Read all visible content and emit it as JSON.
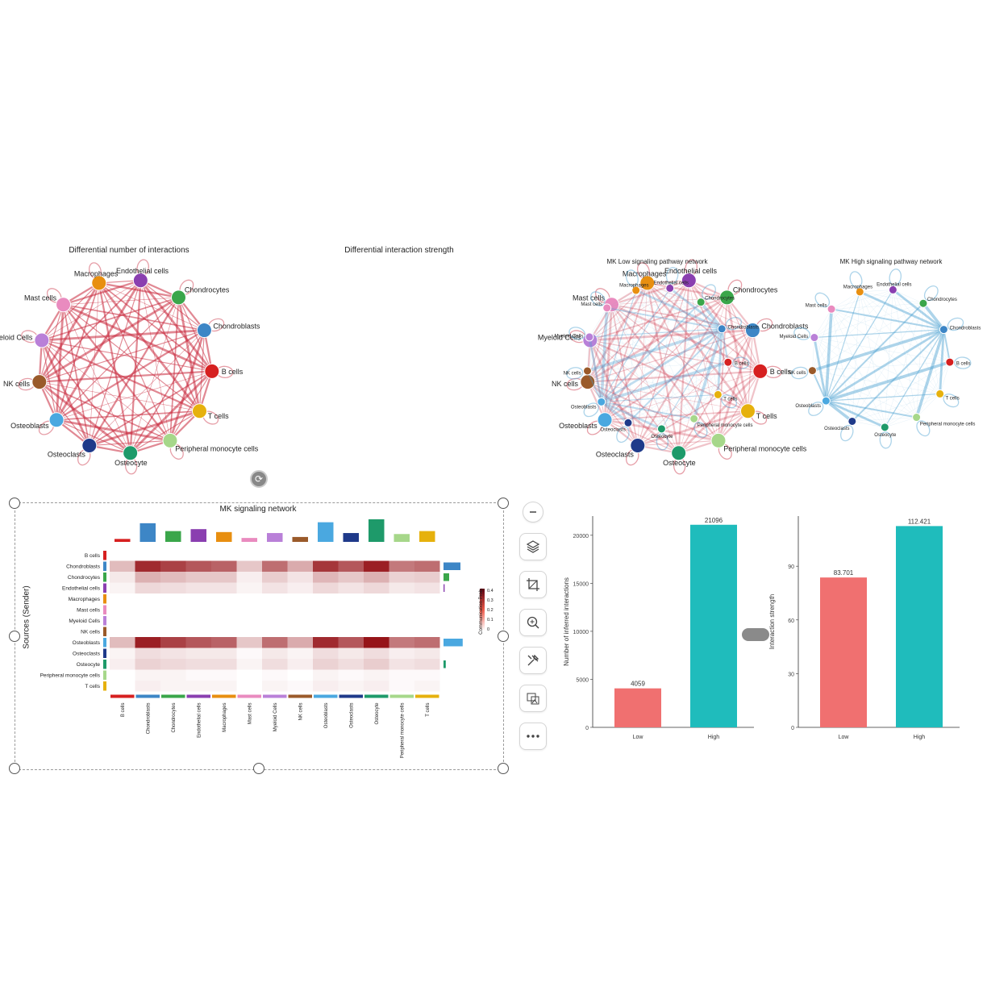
{
  "networks": {
    "cell_types": [
      "Endothelial cells",
      "Chondrocytes",
      "Chondroblasts",
      "B cells",
      "T cells",
      "Peripheral monocyte cells",
      "Osteocyte",
      "Osteoclasts",
      "Osteoblasts",
      "NK cells",
      "Myeloid Cells",
      "Mast cells",
      "Macrophages"
    ],
    "node_colors": [
      "#8a3fb0",
      "#3aa64a",
      "#3d86c6",
      "#d62020",
      "#e6b10d",
      "#a6d78a",
      "#1e9a6a",
      "#1f3a8a",
      "#4aa8e0",
      "#9a5a2a",
      "#b980d8",
      "#e98bbf",
      "#e88f10"
    ],
    "diff_number_title": "Differential number of interactions",
    "diff_strength_title": "Differential interaction strength",
    "low_title": "MK Low signaling pathway network",
    "high_title": "MK High signaling pathway network"
  },
  "heatmap": {
    "title": "MK signaling network",
    "ylabel": "Sources (Sender)",
    "legend_title": "Communication Prob.",
    "legend_ticks": [
      "0.4",
      "0.3",
      "0.2",
      "0.1",
      "0"
    ],
    "rows": [
      "B cells",
      "Chondroblasts",
      "Chondrocytes",
      "Endothelial cells",
      "Macrophages",
      "Mast cells",
      "Myeloid Cells",
      "NK cells",
      "Osteoblasts",
      "Osteoclasts",
      "Osteocyte",
      "Peripheral monocyte cells",
      "T cells"
    ],
    "cols": [
      "B cells",
      "Chondroblasts",
      "Chondrocytes",
      "Endothelial cells",
      "Macrophages",
      "Mast cells",
      "Myeloid Cells",
      "NK cells",
      "Osteoblasts",
      "Osteoclasts",
      "Osteocyte",
      "Peripheral monocyte cells",
      "T cells"
    ],
    "colors": [
      "#d62020",
      "#3d86c6",
      "#3aa64a",
      "#8a3fb0",
      "#e88f10",
      "#e98bbf",
      "#b980d8",
      "#9a5a2a",
      "#4aa8e0",
      "#1f3a8a",
      "#1e9a6a",
      "#a6d78a",
      "#e6b10d"
    ],
    "top_bar_values": [
      0.3,
      1.9,
      1.1,
      1.3,
      1.0,
      0.4,
      0.9,
      0.5,
      2.0,
      0.9,
      2.3,
      0.8,
      1.1
    ],
    "right_bar_values": [
      0,
      1.5,
      0.5,
      0.1,
      0,
      0,
      0,
      0,
      1.7,
      0,
      0.2,
      0,
      0
    ],
    "matrix": [
      [
        0,
        0,
        0,
        0,
        0,
        0,
        0,
        0,
        0,
        0,
        0,
        0,
        0
      ],
      [
        0.12,
        0.38,
        0.34,
        0.3,
        0.28,
        0.1,
        0.26,
        0.15,
        0.36,
        0.3,
        0.4,
        0.24,
        0.26
      ],
      [
        0.04,
        0.14,
        0.12,
        0.1,
        0.1,
        0.03,
        0.09,
        0.05,
        0.13,
        0.1,
        0.14,
        0.08,
        0.09
      ],
      [
        0.02,
        0.07,
        0.06,
        0.05,
        0.05,
        0.02,
        0.05,
        0.03,
        0.07,
        0.05,
        0.07,
        0.04,
        0.05
      ],
      [
        0,
        0,
        0,
        0,
        0,
        0,
        0,
        0,
        0,
        0,
        0,
        0,
        0
      ],
      [
        0,
        0,
        0,
        0,
        0,
        0,
        0,
        0,
        0,
        0,
        0,
        0,
        0
      ],
      [
        0,
        0,
        0,
        0,
        0,
        0,
        0,
        0,
        0,
        0,
        0,
        0,
        0
      ],
      [
        0,
        0,
        0,
        0,
        0,
        0,
        0,
        0,
        0,
        0,
        0,
        0,
        0
      ],
      [
        0.12,
        0.4,
        0.34,
        0.3,
        0.28,
        0.1,
        0.26,
        0.15,
        0.38,
        0.3,
        0.42,
        0.24,
        0.26
      ],
      [
        0.02,
        0.06,
        0.05,
        0.04,
        0.04,
        0.01,
        0.04,
        0.02,
        0.06,
        0.04,
        0.06,
        0.03,
        0.04
      ],
      [
        0.03,
        0.08,
        0.07,
        0.06,
        0.06,
        0.02,
        0.06,
        0.03,
        0.08,
        0.06,
        0.09,
        0.05,
        0.06
      ],
      [
        0,
        0.02,
        0.02,
        0.01,
        0.01,
        0,
        0.01,
        0,
        0.02,
        0.01,
        0.02,
        0.01,
        0.01
      ],
      [
        0,
        0.03,
        0.02,
        0.02,
        0.02,
        0,
        0.02,
        0.01,
        0.03,
        0.02,
        0.03,
        0.01,
        0.02
      ]
    ]
  },
  "chart_data": [
    {
      "type": "bar",
      "categories": [
        "Low",
        "High"
      ],
      "values": [
        4059,
        21096
      ],
      "data_labels": [
        "4059",
        "21096"
      ],
      "ylabel": "Number of inferred interactions",
      "yticks": [
        "0",
        "5000",
        "10000",
        "15000",
        "20000"
      ],
      "ylim": [
        0,
        22000
      ],
      "colors": [
        "#f07070",
        "#1fbcbc"
      ]
    },
    {
      "type": "bar",
      "categories": [
        "Low",
        "High"
      ],
      "values": [
        83.701,
        112.421
      ],
      "data_labels": [
        "83.701",
        "112.421"
      ],
      "ylabel": "Interaction strength",
      "yticks": [
        "0",
        "30",
        "60",
        "90"
      ],
      "ylim": [
        0,
        118
      ],
      "colors": [
        "#f07070",
        "#1fbcbc"
      ]
    }
  ],
  "toolbar": {
    "items": [
      "minus",
      "layers",
      "crop",
      "zoom-in",
      "tools",
      "image-replace",
      "more"
    ]
  }
}
